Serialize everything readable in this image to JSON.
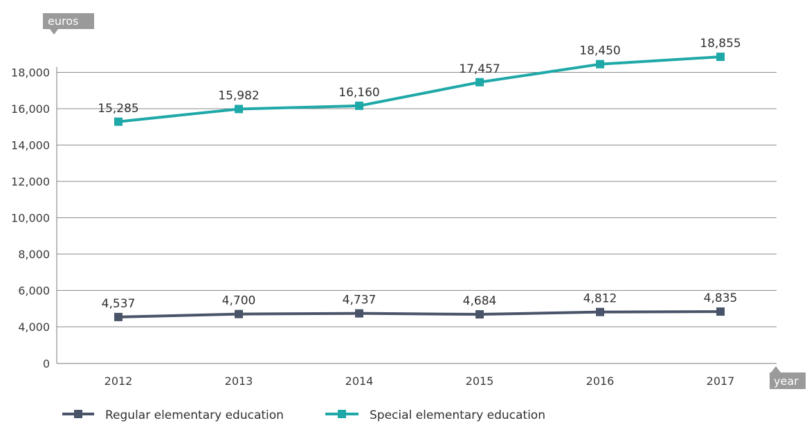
{
  "chart_data": {
    "type": "line",
    "title": "",
    "xlabel": "year",
    "ylabel": "euros",
    "categories": [
      "2012",
      "2013",
      "2014",
      "2015",
      "2016",
      "2017"
    ],
    "y_ticks": [
      "0",
      "4,000",
      "6,000",
      "8,000",
      "10,000",
      "12,000",
      "14,000",
      "16,000",
      "18,000"
    ],
    "grid": true,
    "legend_position": "bottom-left",
    "series": [
      {
        "name": "Regular elementary education",
        "color": "#4a5468",
        "values": [
          4537,
          4700,
          4737,
          4684,
          4812,
          4835
        ],
        "labels": [
          "4,537",
          "4,700",
          "4,737",
          "4,684",
          "4,812",
          "4,835"
        ]
      },
      {
        "name": "Special elementary education",
        "color": "#1fa8a8",
        "values": [
          15285,
          15982,
          16160,
          17457,
          18450,
          18855
        ],
        "labels": [
          "15,285",
          "15,982",
          "16,160",
          "17,457",
          "18,450",
          "18,855"
        ]
      }
    ],
    "colors": {
      "grid": "#8a8a8a",
      "axis_tag_bg": "#9a9a9a"
    }
  }
}
